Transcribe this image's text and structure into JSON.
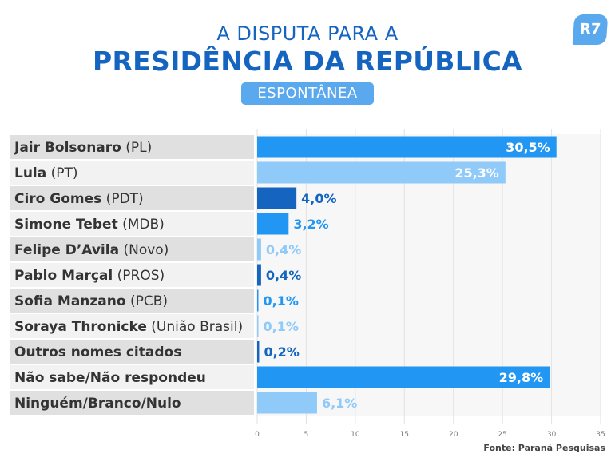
{
  "header": {
    "title_line1": "A DISPUTA PARA A",
    "title_line2": "PRESIDÊNCIA DA REPÚBLICA",
    "subtitle": "ESPONTÂNEA",
    "logo_text": "R7"
  },
  "source": "Fonte: Paraná Pesquisas",
  "colors": {
    "title": "#1565c0",
    "bar_blue": "#2196f3",
    "bar_light": "#90caf9",
    "bar_dark": "#1565c0",
    "bar_mid": "#2196f3",
    "label_band_dark": "#e0e0e0",
    "label_band_light": "#f2f2f2"
  },
  "chart_data": {
    "type": "bar",
    "orientation": "horizontal",
    "title": "A DISPUTA PARA A PRESIDÊNCIA DA REPÚBLICA",
    "subtitle": "ESPONTÂNEA",
    "categories": [
      {
        "name": "Jair Bolsonaro",
        "party": " (PL)"
      },
      {
        "name": "Lula",
        "party": " (PT)"
      },
      {
        "name": "Ciro Gomes",
        "party": " (PDT)"
      },
      {
        "name": "Simone Tebet",
        "party": " (MDB)"
      },
      {
        "name": "Felipe D’Avila",
        "party": " (Novo)"
      },
      {
        "name": "Pablo Marçal",
        "party": " (PROS)"
      },
      {
        "name": "Sofia Manzano",
        "party": " (PCB)"
      },
      {
        "name": "Soraya Thronicke",
        "party": " (União Brasil)"
      },
      {
        "name": "Outros nomes citados",
        "party": ""
      },
      {
        "name": "Não sabe/Não respondeu",
        "party": ""
      },
      {
        "name": "Ninguém/Branco/Nulo",
        "party": ""
      }
    ],
    "values": [
      30.5,
      25.3,
      4.0,
      3.2,
      0.4,
      0.4,
      0.1,
      0.1,
      0.2,
      29.8,
      6.1
    ],
    "value_labels": [
      "30,5%",
      "25,3%",
      "4,0%",
      "3,2%",
      "0,4%",
      "0,4%",
      "0,1%",
      "0,1%",
      "0,2%",
      "29,8%",
      "6,1%"
    ],
    "bar_colors": [
      "#2196f3",
      "#90caf9",
      "#1565c0",
      "#2196f3",
      "#90caf9",
      "#1565c0",
      "#2196f3",
      "#90caf9",
      "#1565c0",
      "#2196f3",
      "#90caf9"
    ],
    "label_inside": [
      true,
      true,
      false,
      false,
      false,
      false,
      false,
      false,
      false,
      true,
      false
    ],
    "xticks": [
      0,
      5,
      10,
      15,
      20,
      25,
      30,
      35
    ],
    "xlim": [
      0,
      35
    ],
    "grid": true
  }
}
